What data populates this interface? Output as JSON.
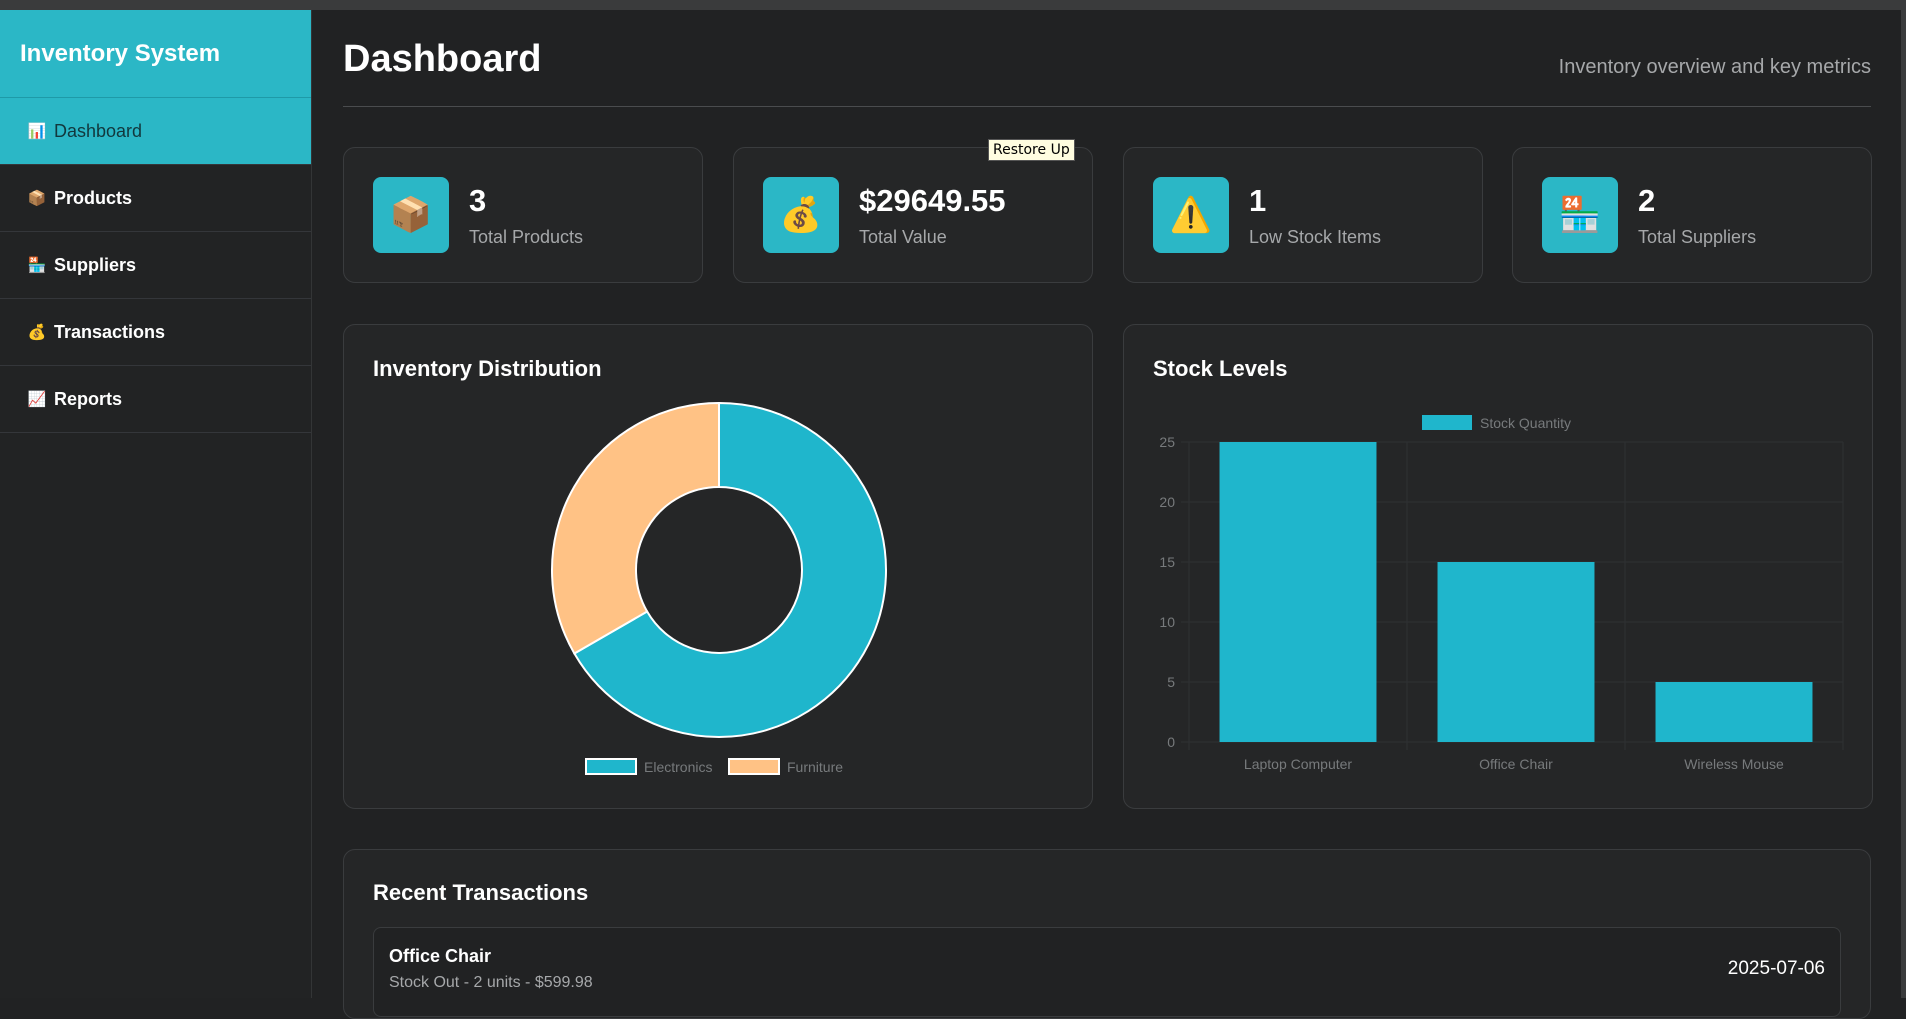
{
  "app": {
    "title": "Inventory System"
  },
  "sidebar": {
    "items": [
      {
        "label": "Dashboard",
        "icon": "📊",
        "active": true
      },
      {
        "label": "Products",
        "icon": "📦",
        "active": false
      },
      {
        "label": "Suppliers",
        "icon": "🏪",
        "active": false
      },
      {
        "label": "Transactions",
        "icon": "💰",
        "active": false
      },
      {
        "label": "Reports",
        "icon": "📈",
        "active": false
      }
    ]
  },
  "header": {
    "title": "Dashboard",
    "subtitle": "Inventory overview and key metrics"
  },
  "tooltip": {
    "text": "Restore Up"
  },
  "stats": [
    {
      "value": "3",
      "label": "Total Products",
      "icon": "📦"
    },
    {
      "value": "$29649.55",
      "label": "Total Value",
      "icon": "💰"
    },
    {
      "value": "1",
      "label": "Low Stock Items",
      "icon": "⚠️"
    },
    {
      "value": "2",
      "label": "Total Suppliers",
      "icon": "🏪"
    }
  ],
  "colors": {
    "accent": "#2bb7c6",
    "bar": "#1fb6cc",
    "furniture": "#ffc285"
  },
  "charts": {
    "distribution_title": "Inventory Distribution",
    "stock_title": "Stock Levels"
  },
  "chart_data": [
    {
      "type": "pie",
      "variant": "doughnut",
      "title": "Inventory Distribution",
      "categories": [
        "Electronics",
        "Furniture"
      ],
      "values": [
        2,
        1
      ],
      "colors": [
        "#1fb6cc",
        "#ffc285"
      ],
      "legend": "bottom"
    },
    {
      "type": "bar",
      "title": "Stock Levels",
      "categories": [
        "Laptop Computer",
        "Office Chair",
        "Wireless Mouse"
      ],
      "series": [
        {
          "name": "Stock Quantity",
          "values": [
            25,
            15,
            5
          ]
        }
      ],
      "ylim": [
        0,
        25
      ],
      "yticks": [
        0,
        5,
        10,
        15,
        20,
        25
      ],
      "grid": true,
      "legend": "top"
    }
  ],
  "transactions": {
    "title": "Recent Transactions",
    "items": [
      {
        "product": "Office Chair",
        "detail": "Stock Out - 2 units - $599.98",
        "date": "2025-07-06"
      }
    ]
  }
}
